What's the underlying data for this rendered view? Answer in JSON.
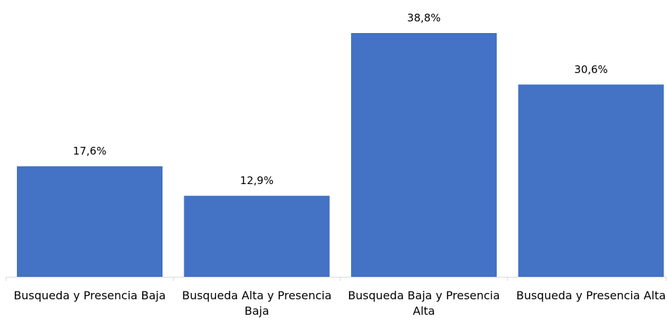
{
  "chart_data": {
    "type": "bar",
    "categories": [
      "Busqueda y Presencia Baja",
      "Busqueda Alta y Presencia Baja",
      "Busqueda Baja y Presencia Alta",
      "Busqueda y Presencia Alta"
    ],
    "values": [
      17.6,
      12.9,
      38.8,
      30.6
    ],
    "value_labels": [
      "17,6%",
      "12,9%",
      "38,8%",
      "30,6%"
    ],
    "color": "#4472c4"
  }
}
